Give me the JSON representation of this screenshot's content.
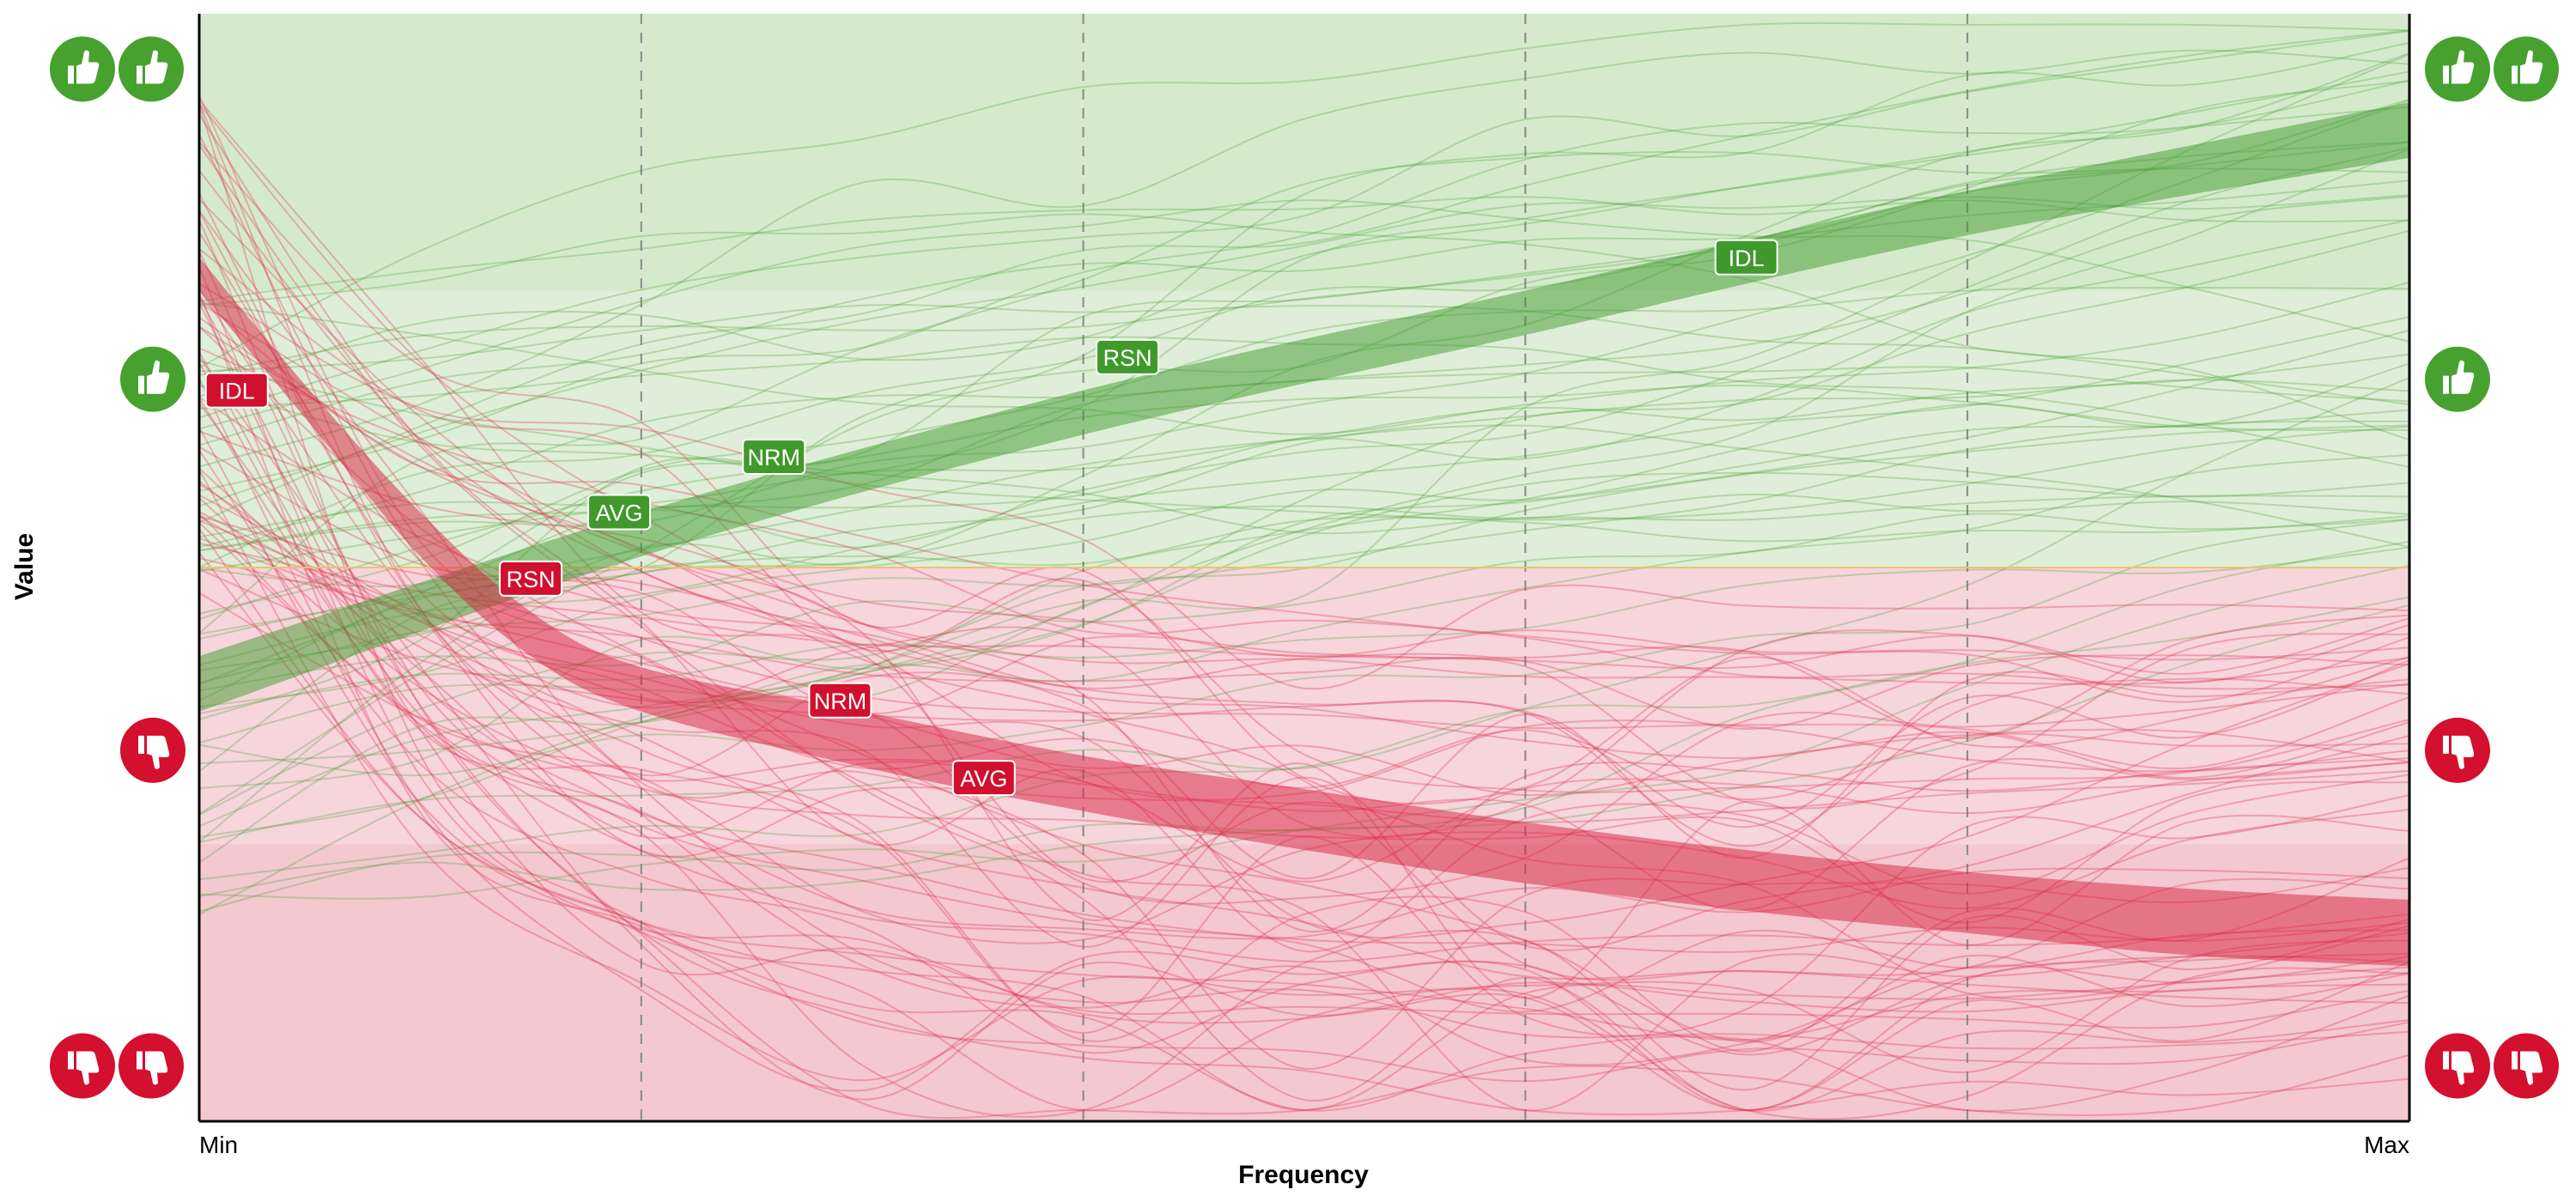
{
  "chart_data": {
    "type": "line",
    "xlabel": "Frequency",
    "ylabel": "Value",
    "x_ticks": [
      "Min",
      "Max"
    ],
    "xlim": [
      0,
      1
    ],
    "ylim": [
      0,
      1
    ],
    "zones": [
      {
        "from": 0.25,
        "to": 0.5,
        "color": "#f6d5db",
        "meaning": "bad"
      },
      {
        "from": 0.0,
        "to": 0.25,
        "color": "#f3c8cf",
        "meaning": "very-bad"
      },
      {
        "from": 0.5,
        "to": 0.75,
        "color": "#dfeed9",
        "meaning": "good"
      },
      {
        "from": 0.75,
        "to": 1.0,
        "color": "#d5eacd",
        "meaning": "very-good"
      }
    ],
    "threshold": {
      "y": 0.5,
      "color": "#f0c070"
    },
    "grid_x": [
      0.2,
      0.4,
      0.6,
      0.8
    ],
    "bands": [
      {
        "name": "green",
        "color": "#3f9a2b",
        "x": [
          0,
          0.2,
          0.4,
          0.6,
          0.8,
          1.0
        ],
        "lower": [
          0.37,
          0.51,
          0.62,
          0.71,
          0.8,
          0.87
        ],
        "upper": [
          0.42,
          0.55,
          0.66,
          0.75,
          0.84,
          0.92
        ]
      },
      {
        "name": "red",
        "color": "#d9203f",
        "x": [
          0,
          0.05,
          0.1,
          0.15,
          0.2,
          0.3,
          0.4,
          0.5,
          0.6,
          0.7,
          0.8,
          0.9,
          1.0
        ],
        "lower": [
          0.75,
          0.63,
          0.51,
          0.42,
          0.37,
          0.32,
          0.28,
          0.245,
          0.215,
          0.19,
          0.17,
          0.15,
          0.14
        ],
        "upper": [
          0.78,
          0.66,
          0.55,
          0.46,
          0.41,
          0.37,
          0.33,
          0.3,
          0.27,
          0.245,
          0.225,
          0.21,
          0.2
        ]
      }
    ],
    "labels": [
      {
        "text": "IDL",
        "color": "#3f9a2b",
        "x": 0.7,
        "y": 0.78
      },
      {
        "text": "RSN",
        "color": "#3f9a2b",
        "x": 0.42,
        "y": 0.69
      },
      {
        "text": "NRM",
        "color": "#3f9a2b",
        "x": 0.26,
        "y": 0.6
      },
      {
        "text": "AVG",
        "color": "#3f9a2b",
        "x": 0.19,
        "y": 0.55
      },
      {
        "text": "IDL",
        "color": "#d0102e",
        "x": 0.017,
        "y": 0.66
      },
      {
        "text": "RSN",
        "color": "#d0102e",
        "x": 0.15,
        "y": 0.49
      },
      {
        "text": "NRM",
        "color": "#d0102e",
        "x": 0.29,
        "y": 0.38
      },
      {
        "text": "AVG",
        "color": "#d0102e",
        "x": 0.355,
        "y": 0.31
      }
    ],
    "grid": true,
    "legend": "none"
  },
  "icons": [
    {
      "name": "double-thumbs-up-icon",
      "y": 0.95,
      "color": "#46a12f",
      "count": 2,
      "dir": "up"
    },
    {
      "name": "thumbs-up-icon",
      "y": 0.67,
      "color": "#46a12f",
      "count": 1,
      "dir": "up"
    },
    {
      "name": "thumbs-down-icon",
      "y": 0.335,
      "color": "#d3102e",
      "count": 1,
      "dir": "down"
    },
    {
      "name": "double-thumbs-down-icon",
      "y": 0.05,
      "color": "#d3102e",
      "count": 2,
      "dir": "down"
    }
  ]
}
